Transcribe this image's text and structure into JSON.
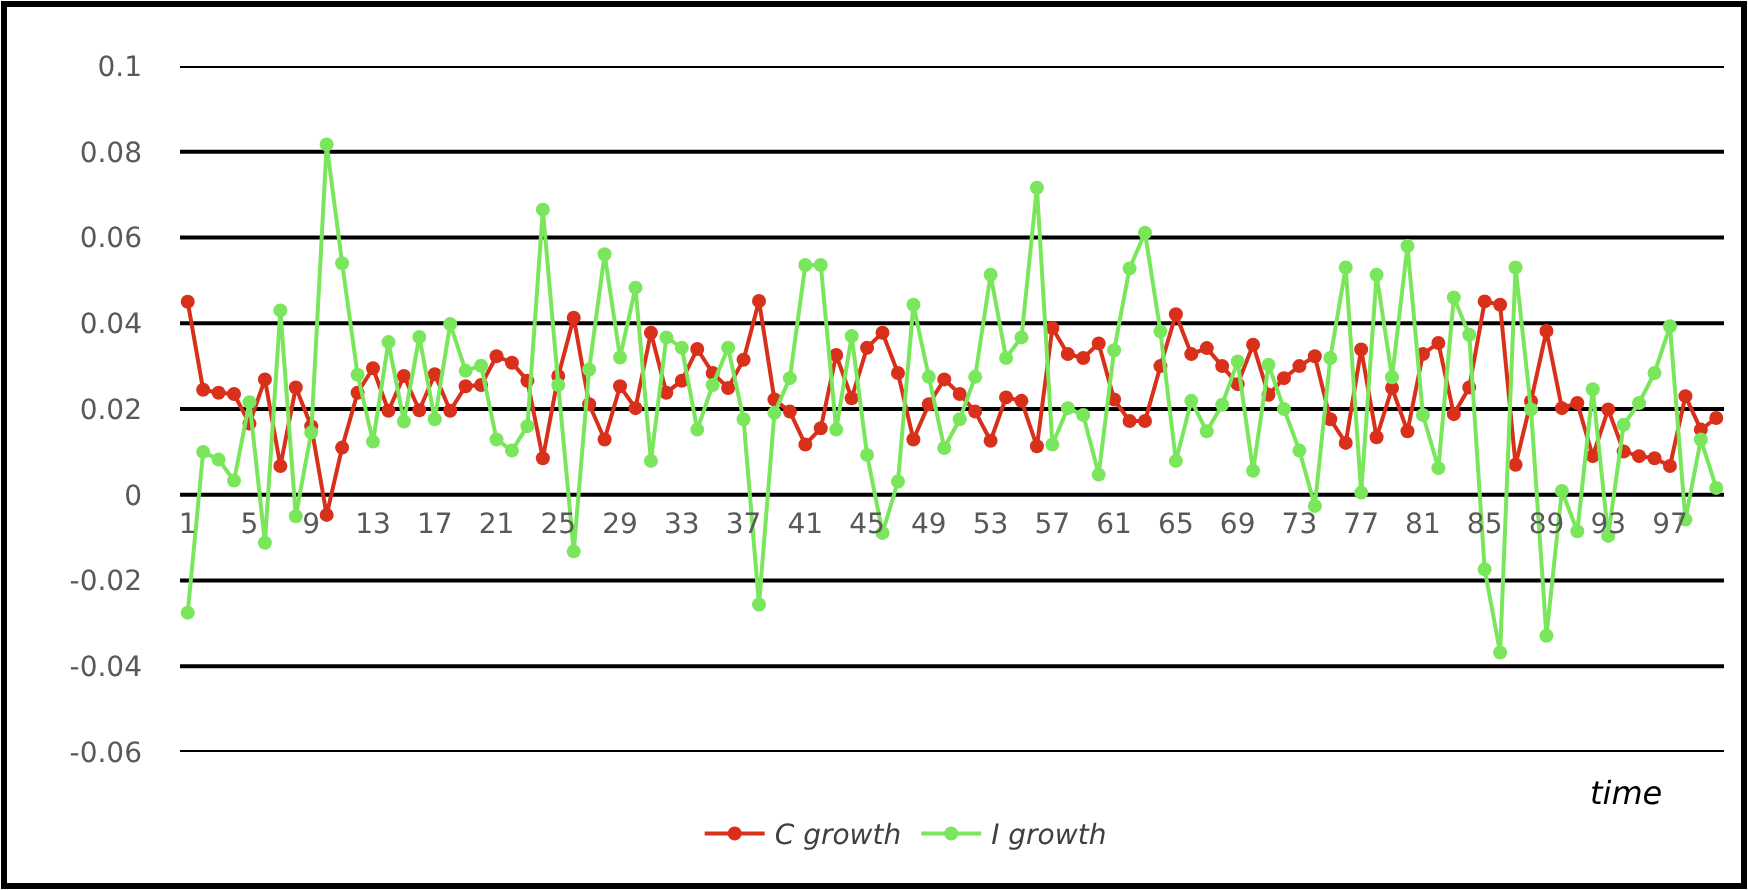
{
  "chart_data": {
    "type": "line",
    "xlabel": "time",
    "categories": [
      "1",
      null,
      null,
      null,
      "5",
      null,
      null,
      null,
      "9",
      null,
      null,
      null,
      "13",
      null,
      null,
      null,
      "17",
      null,
      null,
      null,
      "21",
      null,
      null,
      null,
      "25",
      null,
      null,
      null,
      "29",
      null,
      null,
      null,
      "33",
      null,
      null,
      null,
      "37",
      null,
      null,
      null,
      "41",
      null,
      null,
      null,
      "45",
      null,
      null,
      null,
      "49",
      null,
      null,
      null,
      "53",
      null,
      null,
      null,
      "57",
      null,
      null,
      null,
      "61",
      null,
      null,
      null,
      "65",
      null,
      null,
      null,
      "69",
      null,
      null,
      null,
      "73",
      null,
      null,
      null,
      "77",
      null,
      null,
      null,
      "81",
      null,
      null,
      null,
      "85",
      null,
      null,
      null,
      "89",
      null,
      null,
      null,
      "93",
      null,
      null,
      null,
      "97",
      null,
      null,
      null
    ],
    "series": [
      {
        "name": "C growth",
        "color": "#d8301a",
        "values": [
          0.045,
          0.0245,
          0.0238,
          0.0235,
          0.0166,
          0.0269,
          0.0067,
          0.025,
          0.016,
          -0.0047,
          0.011,
          0.0238,
          0.0295,
          0.0196,
          0.0277,
          0.0197,
          0.0281,
          0.0196,
          0.0253,
          0.0256,
          0.0323,
          0.0308,
          0.0266,
          0.0085,
          0.0277,
          0.0413,
          0.0211,
          0.0129,
          0.0253,
          0.0202,
          0.0378,
          0.0238,
          0.0266,
          0.034,
          0.0284,
          0.0249,
          0.0315,
          0.0452,
          0.0222,
          0.0194,
          0.0117,
          0.0155,
          0.0326,
          0.0225,
          0.0343,
          0.0378,
          0.0284,
          0.0129,
          0.0211,
          0.0269,
          0.0235,
          0.0194,
          0.0126,
          0.0227,
          0.0219,
          0.0113,
          0.0389,
          0.0328,
          0.0319,
          0.0353,
          0.0222,
          0.0172,
          0.0172,
          0.03,
          0.0421,
          0.0328,
          0.0342,
          0.03,
          0.0258,
          0.035,
          0.0233,
          0.0272,
          0.03,
          0.0323,
          0.0176,
          0.0121,
          0.0339,
          0.0134,
          0.0249,
          0.0148,
          0.0328,
          0.0354,
          0.0188,
          0.025,
          0.0451,
          0.0443,
          0.007,
          0.0218,
          0.0382,
          0.0202,
          0.0214,
          0.009,
          0.0199,
          0.0101,
          0.009,
          0.0085,
          0.0067,
          0.023,
          0.0152,
          0.0179
        ]
      },
      {
        "name": "I growth",
        "color": "#7ae65c",
        "values": [
          -0.0275,
          0.01,
          0.0082,
          0.0033,
          0.0216,
          -0.0112,
          0.043,
          -0.005,
          0.0145,
          0.0817,
          0.054,
          0.028,
          0.0124,
          0.0356,
          0.0171,
          0.0368,
          0.0176,
          0.0398,
          0.0289,
          0.0301,
          0.0129,
          0.0103,
          0.016,
          0.0665,
          0.0256,
          -0.0132,
          0.0292,
          0.0561,
          0.032,
          0.0483,
          0.0079,
          0.0367,
          0.0343,
          0.0152,
          0.0256,
          0.0343,
          0.0176,
          -0.0256,
          0.0191,
          0.0272,
          0.0536,
          0.0536,
          0.0152,
          0.037,
          0.0093,
          -0.0089,
          0.0031,
          0.0443,
          0.0275,
          0.0109,
          0.0176,
          0.0275,
          0.0513,
          0.0319,
          0.0367,
          0.0716,
          0.0117,
          0.0202,
          0.0186,
          0.0047,
          0.0337,
          0.0528,
          0.0611,
          0.0381,
          0.0079,
          0.0219,
          0.0148,
          0.021,
          0.0311,
          0.0056,
          0.0303,
          0.02,
          0.0103,
          -0.0026,
          0.0319,
          0.053,
          0.0005,
          0.0513,
          0.0274,
          0.058,
          0.0186,
          0.0062,
          0.046,
          0.0373,
          -0.0174,
          -0.0368,
          0.053,
          0.0199,
          -0.0329,
          0.0009,
          -0.0085,
          0.0246,
          -0.0096,
          0.0163,
          0.0214,
          0.0284,
          0.0393,
          -0.0058,
          0.0129,
          0.0016
        ]
      }
    ],
    "ylim": [
      -0.06,
      0.1
    ],
    "yticks": [
      -0.06,
      -0.04,
      -0.02,
      0,
      0.02,
      0.04,
      0.06,
      0.08,
      0.1
    ],
    "grid": "y",
    "legend": "bottom",
    "marker": "circle",
    "line_style": "solid"
  }
}
